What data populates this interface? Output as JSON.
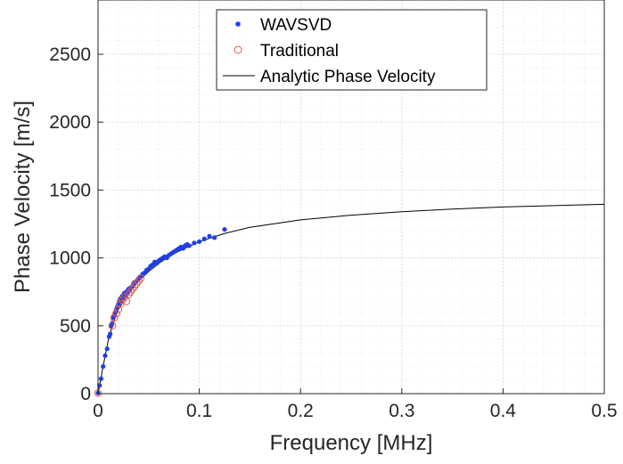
{
  "chart_data": {
    "type": "scatter",
    "xlabel": "Frequency [MHz]",
    "ylabel": "Phase Velocity [m/s]",
    "xlim": [
      0,
      0.5
    ],
    "ylim": [
      0,
      2900
    ],
    "x_ticks": [
      "0",
      "0.1",
      "0.2",
      "0.3",
      "0.4",
      "0.5"
    ],
    "y_ticks": [
      "0",
      "500",
      "1000",
      "1500",
      "2000",
      "2500"
    ],
    "grid": true,
    "minor_grid": true,
    "legend_position": "top-center",
    "colors": {
      "wavsvd": "#1f3fe6",
      "traditional": "#e8584a",
      "analytic": "#000000",
      "grid": "#d9d9d9",
      "axis": "#262626"
    },
    "series": [
      {
        "name": "WAVSVD",
        "marker": "dot",
        "points": [
          [
            0.0,
            5
          ],
          [
            0.0015,
            60
          ],
          [
            0.003,
            110
          ],
          [
            0.005,
            200
          ],
          [
            0.007,
            280
          ],
          [
            0.009,
            330
          ],
          [
            0.011,
            420
          ],
          [
            0.012,
            440
          ],
          [
            0.013,
            500
          ],
          [
            0.014,
            520
          ],
          [
            0.015,
            560
          ],
          [
            0.016,
            580
          ],
          [
            0.017,
            600
          ],
          [
            0.018,
            620
          ],
          [
            0.019,
            640
          ],
          [
            0.02,
            660
          ],
          [
            0.021,
            680
          ],
          [
            0.022,
            700
          ],
          [
            0.023,
            680
          ],
          [
            0.024,
            720
          ],
          [
            0.025,
            700
          ],
          [
            0.026,
            740
          ],
          [
            0.027,
            720
          ],
          [
            0.028,
            750
          ],
          [
            0.029,
            740
          ],
          [
            0.03,
            770
          ],
          [
            0.031,
            760
          ],
          [
            0.032,
            780
          ],
          [
            0.034,
            790
          ],
          [
            0.035,
            810
          ],
          [
            0.036,
            820
          ],
          [
            0.038,
            830
          ],
          [
            0.04,
            850
          ],
          [
            0.042,
            860
          ],
          [
            0.044,
            880
          ],
          [
            0.046,
            890
          ],
          [
            0.048,
            910
          ],
          [
            0.05,
            920
          ],
          [
            0.052,
            940
          ],
          [
            0.054,
            950
          ],
          [
            0.056,
            970
          ],
          [
            0.058,
            960
          ],
          [
            0.06,
            980
          ],
          [
            0.062,
            990
          ],
          [
            0.064,
            1000
          ],
          [
            0.066,
            1010
          ],
          [
            0.068,
            1000
          ],
          [
            0.07,
            1020
          ],
          [
            0.072,
            1030
          ],
          [
            0.074,
            1040
          ],
          [
            0.076,
            1050
          ],
          [
            0.078,
            1060
          ],
          [
            0.08,
            1070
          ],
          [
            0.082,
            1080
          ],
          [
            0.084,
            1070
          ],
          [
            0.086,
            1090
          ],
          [
            0.088,
            1100
          ],
          [
            0.09,
            1090
          ],
          [
            0.095,
            1110
          ],
          [
            0.1,
            1120
          ],
          [
            0.105,
            1140
          ],
          [
            0.11,
            1160
          ],
          [
            0.115,
            1150
          ],
          [
            0.125,
            1210
          ]
        ]
      },
      {
        "name": "Traditional",
        "marker": "circle",
        "points": [
          [
            0.0,
            5
          ],
          [
            0.014,
            500
          ],
          [
            0.016,
            560
          ],
          [
            0.018,
            590
          ],
          [
            0.02,
            620
          ],
          [
            0.022,
            660
          ],
          [
            0.024,
            690
          ],
          [
            0.026,
            710
          ],
          [
            0.028,
            680
          ],
          [
            0.03,
            730
          ],
          [
            0.032,
            750
          ],
          [
            0.034,
            770
          ],
          [
            0.036,
            790
          ],
          [
            0.038,
            810
          ],
          [
            0.04,
            830
          ],
          [
            0.042,
            850
          ]
        ]
      },
      {
        "name": "Analytic Phase Velocity",
        "marker": "line",
        "points": [
          [
            0.0,
            0
          ],
          [
            0.005,
            200
          ],
          [
            0.01,
            390
          ],
          [
            0.015,
            520
          ],
          [
            0.02,
            620
          ],
          [
            0.03,
            740
          ],
          [
            0.04,
            830
          ],
          [
            0.05,
            900
          ],
          [
            0.06,
            960
          ],
          [
            0.07,
            1010
          ],
          [
            0.08,
            1050
          ],
          [
            0.1,
            1120
          ],
          [
            0.125,
            1180
          ],
          [
            0.15,
            1225
          ],
          [
            0.2,
            1280
          ],
          [
            0.25,
            1315
          ],
          [
            0.3,
            1340
          ],
          [
            0.35,
            1360
          ],
          [
            0.4,
            1375
          ],
          [
            0.45,
            1385
          ],
          [
            0.5,
            1395
          ]
        ]
      }
    ]
  }
}
